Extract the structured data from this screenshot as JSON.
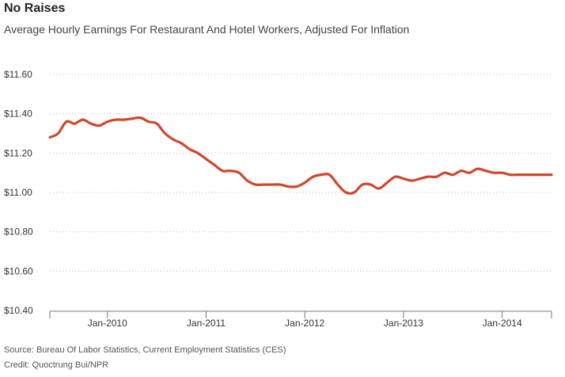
{
  "title": "No Raises",
  "subtitle": "Average Hourly Earnings For Restaurant And Hotel Workers, Adjusted For Inflation",
  "source": "Source: Bureau Of Labor Statistics, Current Employment Statistics (CES)",
  "credit": "Credit: Quoctrung Bui/NPR",
  "colors": {
    "line": "#d0472c",
    "grid": "#bbbbbb",
    "axis": "#777777",
    "text": "#333333"
  },
  "chart_data": {
    "type": "line",
    "title": "No Raises",
    "subtitle": "Average Hourly Earnings For Restaurant And Hotel Workers, Adjusted For Inflation",
    "xlabel": "",
    "ylabel": "",
    "ylim": [
      10.4,
      11.6
    ],
    "yticks": [
      10.4,
      10.6,
      10.8,
      11.0,
      11.2,
      11.4,
      11.6
    ],
    "ytick_labels": [
      "$10.40",
      "$10.60",
      "$10.80",
      "$11.00",
      "$11.20",
      "$11.40",
      "$11.60"
    ],
    "xticks": [
      "Jan-2010",
      "Jan-2011",
      "Jan-2012",
      "Jan-2013",
      "Jan-2014"
    ],
    "xlim": [
      "2009-06",
      "2014-07"
    ],
    "grid": "horizontal dotted",
    "series": [
      {
        "x": [
          "2009-06",
          "2009-07",
          "2009-08",
          "2009-09",
          "2009-10",
          "2009-11",
          "2009-12",
          "2010-01",
          "2010-02",
          "2010-03",
          "2010-04",
          "2010-05",
          "2010-06",
          "2010-07",
          "2010-08",
          "2010-09",
          "2010-10",
          "2010-11",
          "2010-12",
          "2011-01",
          "2011-02",
          "2011-03",
          "2011-04",
          "2011-05",
          "2011-06",
          "2011-07",
          "2011-08",
          "2011-09",
          "2011-10",
          "2011-11",
          "2011-12",
          "2012-01",
          "2012-02",
          "2012-03",
          "2012-04",
          "2012-05",
          "2012-06",
          "2012-07",
          "2012-08",
          "2012-09",
          "2012-10",
          "2012-11",
          "2012-12",
          "2013-01",
          "2013-02",
          "2013-03",
          "2013-04",
          "2013-05",
          "2013-06",
          "2013-07",
          "2013-08",
          "2013-09",
          "2013-10",
          "2013-11",
          "2013-12",
          "2014-01",
          "2014-02",
          "2014-03",
          "2014-04",
          "2014-05",
          "2014-06",
          "2014-07"
        ],
        "values": [
          11.28,
          11.3,
          11.36,
          11.35,
          11.37,
          11.35,
          11.34,
          11.36,
          11.37,
          11.37,
          11.375,
          11.38,
          11.36,
          11.35,
          11.3,
          11.27,
          11.25,
          11.22,
          11.2,
          11.17,
          11.14,
          11.11,
          11.11,
          11.1,
          11.06,
          11.04,
          11.04,
          11.04,
          11.04,
          11.03,
          11.03,
          11.05,
          11.08,
          11.09,
          11.09,
          11.04,
          11.0,
          11.0,
          11.04,
          11.04,
          11.02,
          11.05,
          11.08,
          11.07,
          11.06,
          11.07,
          11.08,
          11.08,
          11.1,
          11.09,
          11.11,
          11.1,
          11.12,
          11.11,
          11.1,
          11.1,
          11.09,
          11.09,
          11.09,
          11.09,
          11.09,
          11.09
        ]
      }
    ]
  }
}
